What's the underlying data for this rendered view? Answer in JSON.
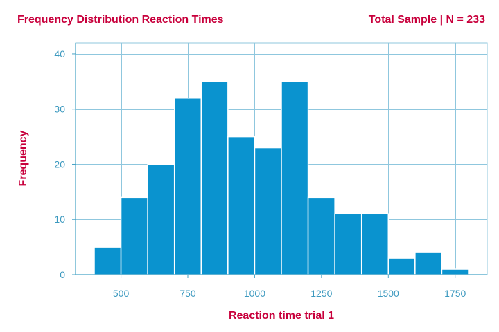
{
  "colors": {
    "title": "#c8003c",
    "axis": "#46a3c6",
    "tick_text": "#3c99bf",
    "bar_fill": "#0a93cf",
    "bar_stroke": "#ffffff",
    "grid": "#8fc7de"
  },
  "chart_data": {
    "type": "bar",
    "title": "Frequency Distribution Reaction Times",
    "subtitle": "Total Sample | N = 233",
    "xlabel": "Reaction time trial 1",
    "ylabel": "Frequency",
    "xlim": [
      330,
      1870
    ],
    "ylim": [
      0,
      42
    ],
    "xticks": [
      500,
      750,
      1000,
      1250,
      1500,
      1750
    ],
    "yticks": [
      0,
      10,
      20,
      30,
      40
    ],
    "grid": true,
    "bins": [
      {
        "x0": 400,
        "x1": 500,
        "value": 5
      },
      {
        "x0": 500,
        "x1": 600,
        "value": 14
      },
      {
        "x0": 600,
        "x1": 700,
        "value": 20
      },
      {
        "x0": 700,
        "x1": 800,
        "value": 32
      },
      {
        "x0": 800,
        "x1": 900,
        "value": 35
      },
      {
        "x0": 900,
        "x1": 1000,
        "value": 25
      },
      {
        "x0": 1000,
        "x1": 1100,
        "value": 23
      },
      {
        "x0": 1100,
        "x1": 1200,
        "value": 35
      },
      {
        "x0": 1200,
        "x1": 1300,
        "value": 14
      },
      {
        "x0": 1300,
        "x1": 1400,
        "value": 11
      },
      {
        "x0": 1400,
        "x1": 1500,
        "value": 11
      },
      {
        "x0": 1500,
        "x1": 1600,
        "value": 3
      },
      {
        "x0": 1600,
        "x1": 1700,
        "value": 4
      },
      {
        "x0": 1700,
        "x1": 1800,
        "value": 1
      }
    ]
  }
}
